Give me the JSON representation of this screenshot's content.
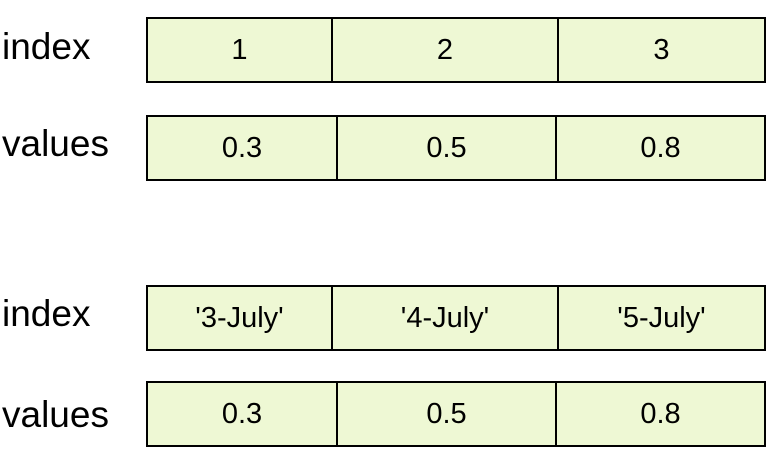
{
  "colors": {
    "cell_fill": "#eef8d4",
    "border": "#000000",
    "text": "#000000"
  },
  "panels": [
    {
      "index_label": "index",
      "values_label": "values",
      "index": [
        "1",
        "2",
        "3"
      ],
      "values": [
        "0.3",
        "0.5",
        "0.8"
      ]
    },
    {
      "index_label": "index",
      "values_label": "values",
      "index": [
        "'3-July'",
        "'4-July'",
        "'5-July'"
      ],
      "values": [
        "0.3",
        "0.5",
        "0.8"
      ]
    }
  ]
}
